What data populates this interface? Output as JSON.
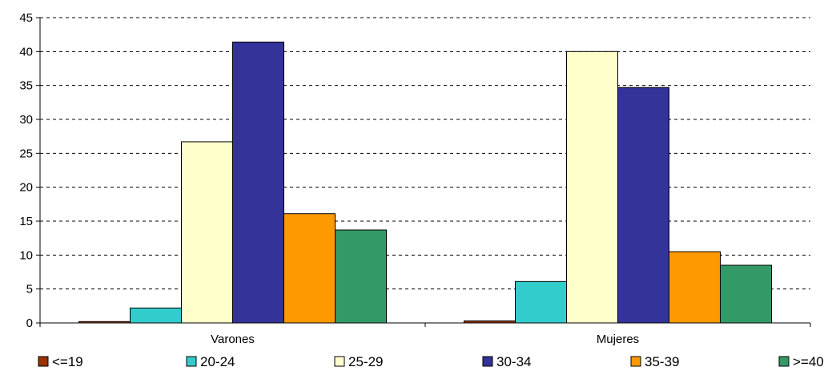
{
  "chart_data": {
    "type": "bar",
    "title": "",
    "xlabel": "",
    "ylabel": "",
    "categories": [
      "Varones",
      "Mujeres"
    ],
    "ylim": [
      0,
      45
    ],
    "yticks": [
      0,
      5,
      10,
      15,
      20,
      25,
      30,
      35,
      40,
      45
    ],
    "grid": "horizontal-dashed",
    "legend_position": "bottom",
    "series": [
      {
        "name": "<=19",
        "color": "#993300",
        "values": [
          0.2,
          0.3
        ]
      },
      {
        "name": "20-24",
        "color": "#33CCCC",
        "values": [
          2.2,
          6.1
        ]
      },
      {
        "name": "25-29",
        "color": "#FFFFCC",
        "values": [
          26.7,
          40.0
        ]
      },
      {
        "name": "30-34",
        "color": "#333399",
        "values": [
          41.4,
          34.7
        ]
      },
      {
        "name": "35-39",
        "color": "#FF9900",
        "values": [
          16.1,
          10.5
        ]
      },
      {
        "name": ">=40",
        "color": "#339966",
        "values": [
          13.7,
          8.5
        ]
      }
    ]
  }
}
